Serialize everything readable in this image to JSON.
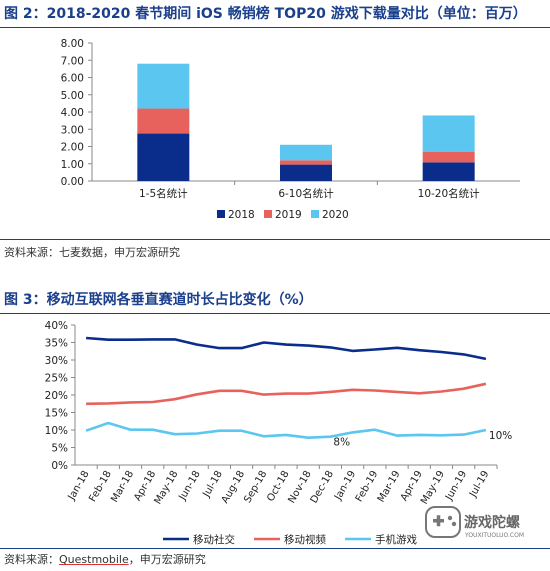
{
  "figure2": {
    "title": "图 2：2018-2020 春节期间 iOS 畅销榜 TOP20 游戏下载量对比（单位：百万）",
    "source": "资料来源：七麦数据，申万宏源研究"
  },
  "figure3": {
    "title": "图 3：移动互联网各垂直赛道时长占比变化（%）",
    "source_prefix": "资料来源：",
    "source_highlight": "Questmobile",
    "source_suffix": "，申万宏源研究"
  },
  "watermark": {
    "text": "游戏陀螺",
    "subtext": "YOUXITUOLUO.COM"
  },
  "chart_data": [
    {
      "type": "bar",
      "stacked": true,
      "categories": [
        "1-5名统计",
        "6-10名统计",
        "10-20名统计"
      ],
      "series": [
        {
          "name": "2018",
          "values": [
            2.75,
            0.95,
            1.08
          ],
          "color": "#0a2d8c"
        },
        {
          "name": "2019",
          "values": [
            1.45,
            0.25,
            0.62
          ],
          "color": "#e8625d"
        },
        {
          "name": "2020",
          "values": [
            2.6,
            0.9,
            2.1
          ],
          "color": "#5bc6ef"
        }
      ],
      "ylim": [
        0,
        8
      ],
      "yticks": [
        "0.00",
        "1.00",
        "2.00",
        "3.00",
        "4.00",
        "5.00",
        "6.00",
        "7.00",
        "8.00"
      ],
      "legend_position": "bottom",
      "grid": false
    },
    {
      "type": "line",
      "x": [
        "Jan-18",
        "Feb-18",
        "Mar-18",
        "Apr-18",
        "May-18",
        "Jun-18",
        "Jul-18",
        "Aug-18",
        "Sep-18",
        "Oct-18",
        "Nov-18",
        "Dec-18",
        "Jan-19",
        "Feb-19",
        "Mar-19",
        "Apr-19",
        "May-19",
        "Jun-19",
        "Jul-19"
      ],
      "series": [
        {
          "name": "移动社交",
          "color": "#0a2d8c",
          "values": [
            36.3,
            35.8,
            35.8,
            35.9,
            35.9,
            34.4,
            33.4,
            33.4,
            35.0,
            34.4,
            34.1,
            33.6,
            32.6,
            33.0,
            33.5,
            32.8,
            32.3,
            31.6,
            30.3
          ]
        },
        {
          "name": "移动视频",
          "color": "#e8625d",
          "values": [
            17.5,
            17.6,
            17.9,
            18.0,
            18.8,
            20.2,
            21.2,
            21.2,
            20.1,
            20.4,
            20.4,
            20.9,
            21.5,
            21.3,
            20.9,
            20.5,
            21.0,
            21.8,
            23.2
          ]
        },
        {
          "name": "手机游戏",
          "color": "#5bc6ef",
          "values": [
            9.8,
            12.0,
            10.1,
            10.1,
            8.8,
            9.0,
            9.8,
            9.8,
            8.2,
            8.6,
            7.8,
            8.1,
            9.3,
            10.1,
            8.4,
            8.6,
            8.5,
            8.7,
            10.0
          ]
        }
      ],
      "ylim": [
        0,
        40
      ],
      "yticks": [
        "0%",
        "5%",
        "10%",
        "15%",
        "20%",
        "25%",
        "30%",
        "35%",
        "40%"
      ],
      "annotations": [
        {
          "text": "8%",
          "series": "手机游戏",
          "index": 11
        },
        {
          "text": "10%",
          "series": "手机游戏",
          "index": 18
        }
      ],
      "legend_position": "bottom",
      "grid": false
    }
  ]
}
